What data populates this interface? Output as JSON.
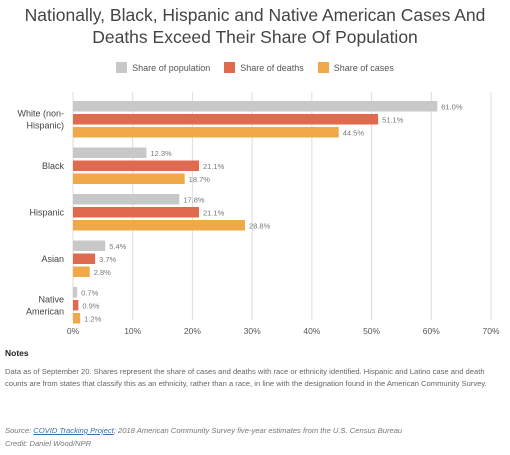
{
  "title_line1": "Nationally, Black, Hispanic and Native American Cases And",
  "title_line2": "Deaths Exceed Their Share Of Population",
  "legend": {
    "population": "Share of population",
    "deaths": "Share of deaths",
    "cases": "Share of cases"
  },
  "colors": {
    "population": "#c8c8c8",
    "deaths": "#e06a4e",
    "cases": "#efa948",
    "grid": "#dddddd"
  },
  "notes": {
    "heading": "Notes",
    "text": "Data as of September 20. Shares represent the share of cases and deaths with race or ethnicity identified. Hispanic and Latino case and death counts are from states that classify this as an ethnicity, rather than a race, in line with the designation found in the American Community Survey.",
    "source_prefix": "Source: ",
    "source_link": "COVID Tracking Project",
    "source_rest": "; 2018 American Community Survey five-year estimates from the U.S. Census Bureau",
    "credit": "Credit: Daniel Wood/NPR"
  },
  "chart_data": {
    "type": "bar",
    "orientation": "horizontal",
    "categories": [
      "White (non-Hispanic)",
      "Black",
      "Hispanic",
      "Asian",
      "Native American"
    ],
    "category_lines": [
      [
        "White (non-",
        "Hispanic)"
      ],
      [
        "Black"
      ],
      [
        "Hispanic"
      ],
      [
        "Asian"
      ],
      [
        "Native",
        "American"
      ]
    ],
    "series": [
      {
        "name": "Share of population",
        "key": "population",
        "values": [
          61.0,
          12.3,
          17.8,
          5.4,
          0.7
        ]
      },
      {
        "name": "Share of deaths",
        "key": "deaths",
        "values": [
          51.1,
          21.1,
          21.1,
          3.7,
          0.9
        ]
      },
      {
        "name": "Share of cases",
        "key": "cases",
        "values": [
          44.5,
          18.7,
          28.8,
          2.8,
          1.2
        ]
      }
    ],
    "value_labels": [
      [
        "61.0%",
        "51.1%",
        "44.5%"
      ],
      [
        "12.3%",
        "21.1%",
        "18.7%"
      ],
      [
        "17.8%",
        "21.1%",
        "28.8%"
      ],
      [
        "5.4%",
        "3.7%",
        "2.8%"
      ],
      [
        "0.7%",
        "0.9%",
        "1.2%"
      ]
    ],
    "xlim": [
      0,
      70
    ],
    "xticks": [
      "0%",
      "10%",
      "20%",
      "30%",
      "40%",
      "50%",
      "60%",
      "70%"
    ],
    "legend_position": "top-center",
    "grid": true
  }
}
